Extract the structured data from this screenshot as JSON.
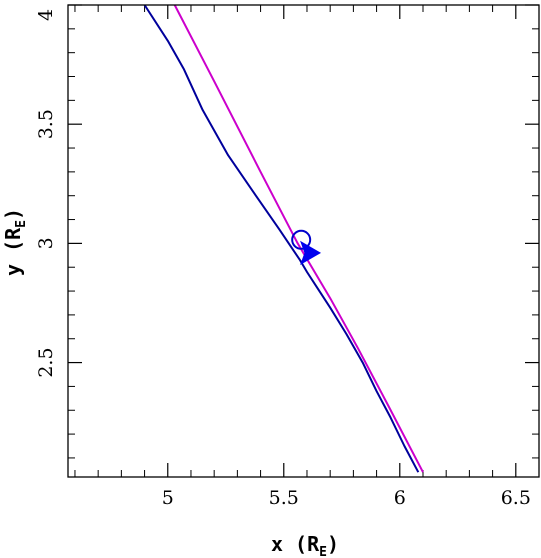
{
  "chart_data": {
    "type": "line",
    "xlabel": "x (R",
    "xlabel_sub": "E",
    "xlabel_close": ")",
    "ylabel": "y (R",
    "ylabel_sub": "E",
    "ylabel_close": ")",
    "xlim": [
      4.57,
      6.6
    ],
    "ylim": [
      2.02,
      4.0
    ],
    "x_ticks": [
      5,
      5.5,
      6,
      6.5
    ],
    "x_tick_labels": [
      "5",
      "5.5",
      "6",
      "6.5"
    ],
    "x_minor_step": 0.1,
    "y_ticks": [
      2.5,
      3,
      3.5,
      4
    ],
    "y_tick_labels": [
      "2.5",
      "3",
      "3.5",
      "4"
    ],
    "y_minor_step": 0.1,
    "grid": false,
    "series": [
      {
        "color": "#00009c",
        "x": [
          4.9,
          5.0,
          5.07,
          5.15,
          5.26,
          5.38,
          5.48,
          5.57,
          5.6,
          5.64,
          5.7,
          5.77,
          5.84,
          5.9,
          5.96,
          6.02,
          6.08
        ],
        "y": [
          4.0,
          3.85,
          3.73,
          3.56,
          3.37,
          3.2,
          3.06,
          2.93,
          2.88,
          2.82,
          2.73,
          2.62,
          2.5,
          2.38,
          2.27,
          2.15,
          2.04
        ]
      },
      {
        "color": "#cc00cc",
        "x": [
          5.03,
          5.2,
          5.4,
          5.56,
          5.7,
          5.82,
          5.95,
          6.1
        ],
        "y": [
          4.0,
          3.68,
          3.3,
          3.0,
          2.77,
          2.56,
          2.32,
          2.04
        ]
      }
    ],
    "markers": [
      {
        "shape": "circle",
        "color": "#0000cc",
        "x": 5.575,
        "y": 3.015
      },
      {
        "shape": "arrowhead",
        "color": "#0000ee",
        "x": 5.6,
        "y": 2.96
      }
    ]
  }
}
